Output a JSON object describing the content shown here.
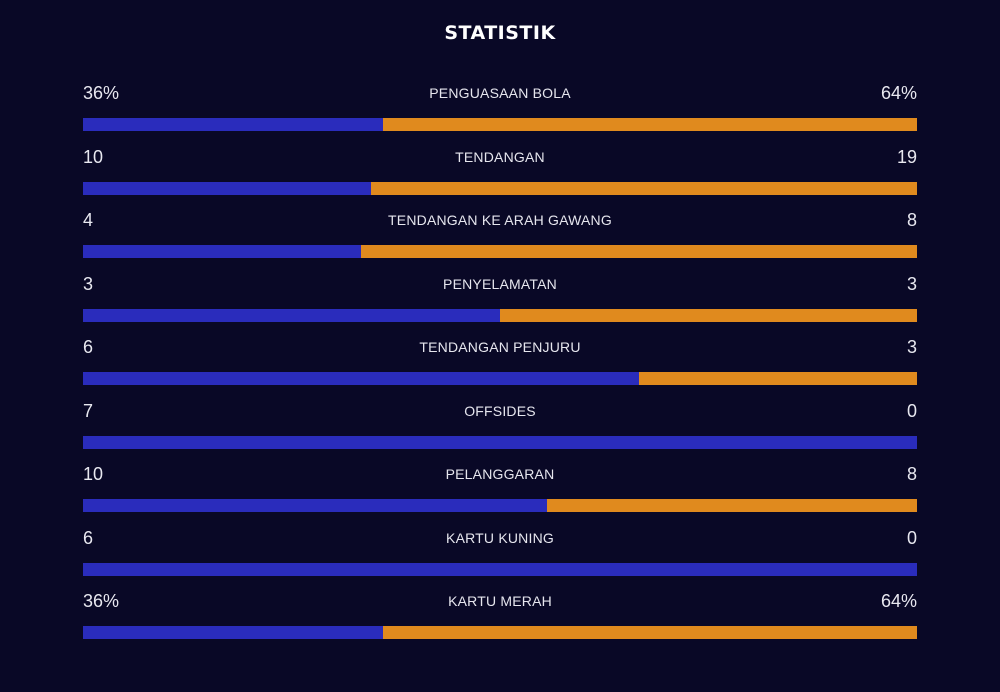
{
  "header": {
    "title": "STATISTIK"
  },
  "colors": {
    "background": "#090826",
    "home": "#2a2cbc",
    "away": "#e08a1e"
  },
  "stats": [
    {
      "label": "PENGUASAAN BOLA",
      "home": "36%",
      "away": "64%",
      "home_share": 0.36
    },
    {
      "label": "TENDANGAN",
      "home": "10",
      "away": "19",
      "home_share": 0.345
    },
    {
      "label": "TENDANGAN KE ARAH GAWANG",
      "home": "4",
      "away": "8",
      "home_share": 0.333
    },
    {
      "label": "PENYELAMATAN",
      "home": "3",
      "away": "3",
      "home_share": 0.5
    },
    {
      "label": "TENDANGAN PENJURU",
      "home": "6",
      "away": "3",
      "home_share": 0.667
    },
    {
      "label": "OFFSIDES",
      "home": "7",
      "away": "0",
      "home_share": 1.0
    },
    {
      "label": "PELANGGARAN",
      "home": "10",
      "away": "8",
      "home_share": 0.556
    },
    {
      "label": "KARTU KUNING",
      "home": "6",
      "away": "0",
      "home_share": 1.0
    },
    {
      "label": "KARTU MERAH",
      "home": "36%",
      "away": "64%",
      "home_share": 0.36
    }
  ]
}
